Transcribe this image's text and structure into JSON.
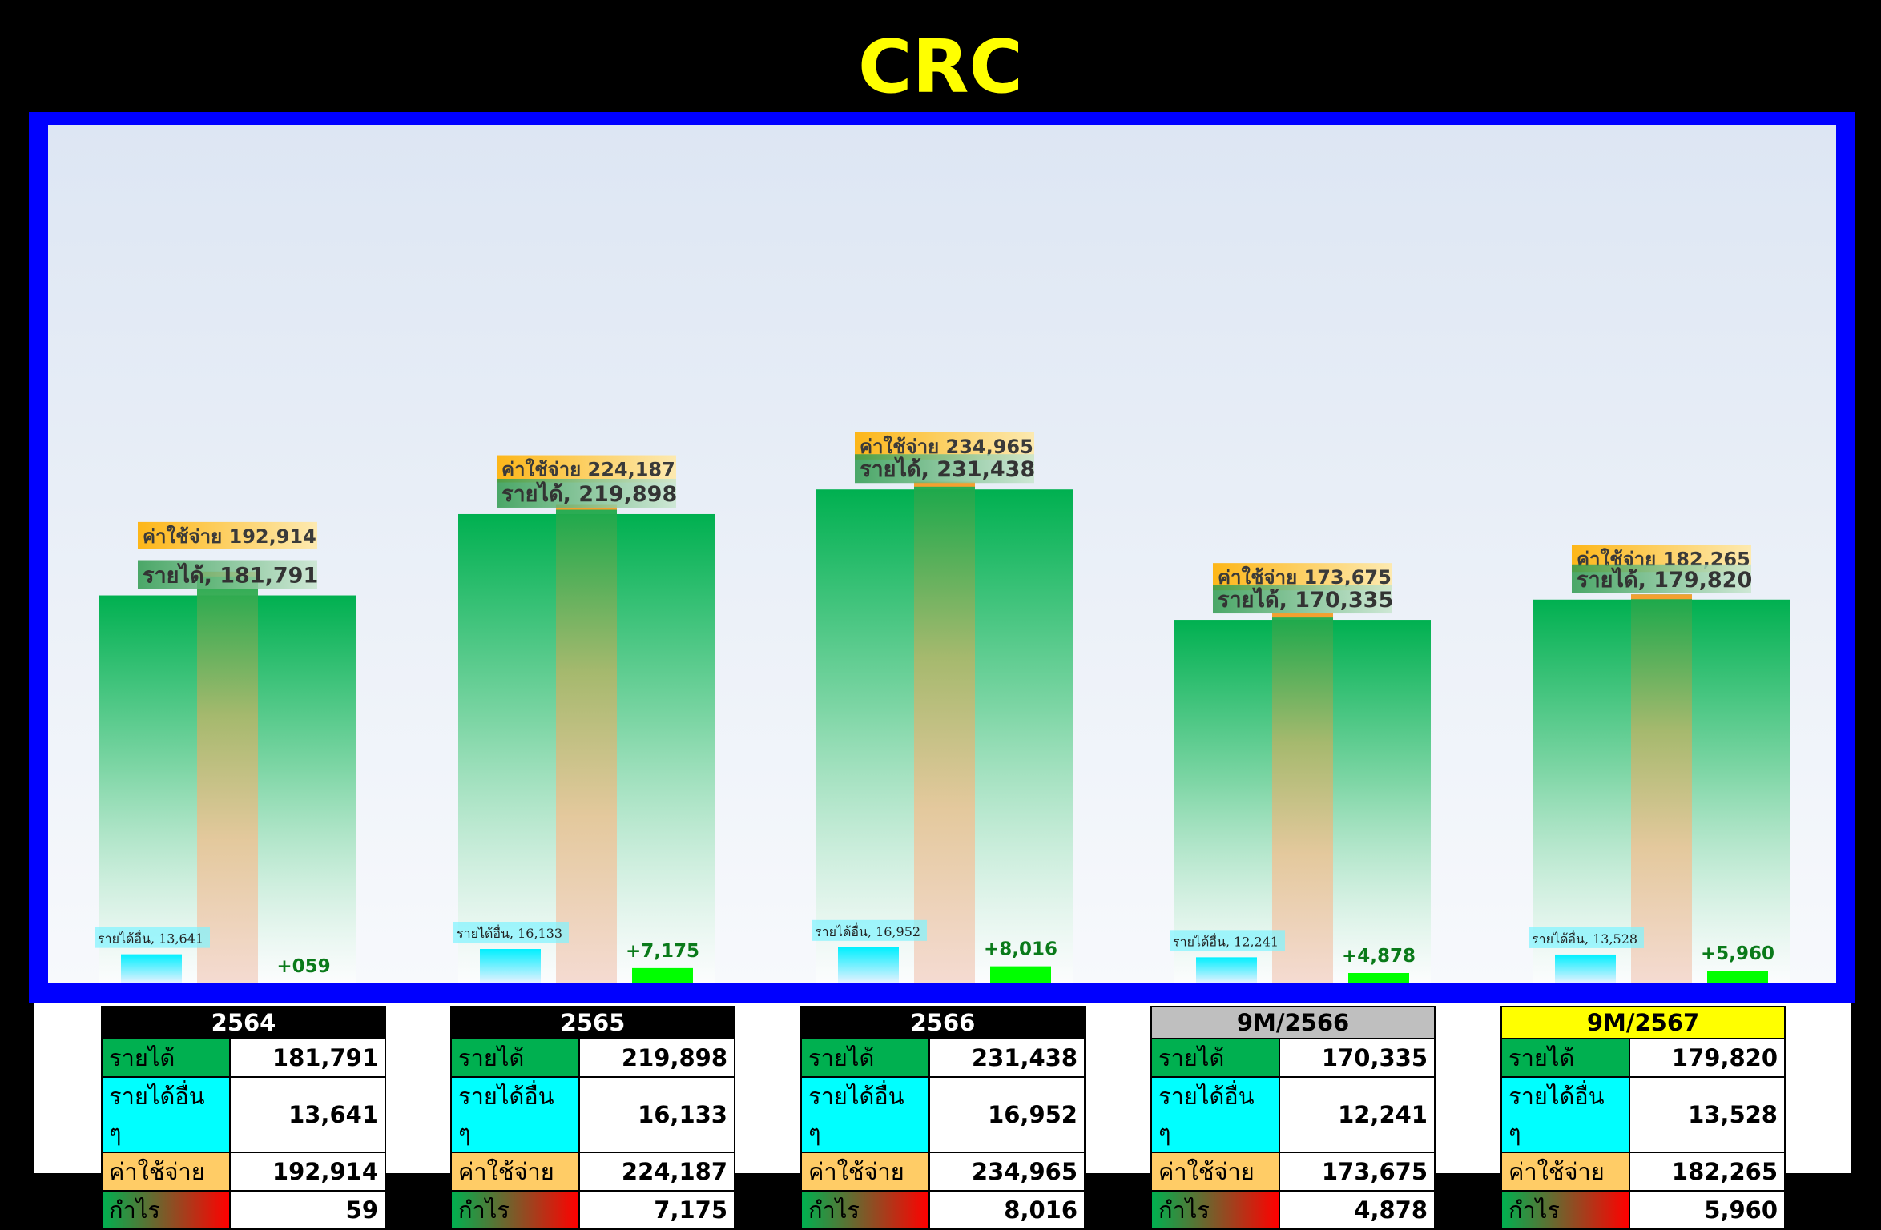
{
  "title": "CRC",
  "colors": {
    "revenue": "#00b050",
    "other_income": "#00ffff",
    "expense": "#ffcc66",
    "profit": "#00ff00",
    "frame": "#0000ff",
    "title": "#ffff00"
  },
  "chart_data": {
    "type": "bar",
    "categories": [
      "2564",
      "2565",
      "2566",
      "9M/2566",
      "9M/2567"
    ],
    "series": [
      {
        "name": "รายได้",
        "values": [
          181791,
          219898,
          231438,
          170335,
          179820
        ]
      },
      {
        "name": "รายได้อื่น",
        "values": [
          13641,
          16133,
          16952,
          12241,
          13528
        ]
      },
      {
        "name": "ค่าใช้จ่าย",
        "values": [
          192914,
          224187,
          234965,
          173675,
          182265
        ]
      },
      {
        "name": "กำไร",
        "values": [
          59,
          7175,
          8016,
          4878,
          5960
        ]
      }
    ],
    "data_labels": {
      "revenue": [
        "รายได้, 181,791",
        "รายได้, 219,898",
        "รายได้, 231,438",
        "รายได้, 170,335",
        "รายได้, 179,820"
      ],
      "other_income": [
        "รายได้อื่น, 13,641",
        "รายได้อื่น, 16,133",
        "รายได้อื่น, 16,952",
        "รายได้อื่น, 12,241",
        "รายได้อื่น, 13,528"
      ],
      "expense": [
        "ค่าใช้จ่าย  192,914",
        "ค่าใช้จ่าย  224,187",
        "ค่าใช้จ่าย  234,965",
        "ค่าใช้จ่าย  173,675",
        "ค่าใช้จ่าย  182,265"
      ],
      "profit": [
        "+059",
        "+7,175",
        "+8,016",
        "+4,878",
        "+5,960"
      ]
    },
    "ylim": [
      0,
      250000
    ],
    "grid": false,
    "legend": "none"
  },
  "tables": [
    {
      "header": "2564",
      "header_style": "black",
      "rows": [
        {
          "label": "รายได้",
          "value": "181,791",
          "style": "rev"
        },
        {
          "label": "รายได้อื่น ๆ",
          "value": "13,641",
          "style": "oth"
        },
        {
          "label": "ค่าใช้จ่าย",
          "value": "192,914",
          "style": "exp"
        },
        {
          "label": "กำไร",
          "value": "59",
          "style": "prof"
        }
      ]
    },
    {
      "header": "2565",
      "header_style": "black",
      "rows": [
        {
          "label": "รายได้",
          "value": "219,898",
          "style": "rev"
        },
        {
          "label": "รายได้อื่น ๆ",
          "value": "16,133",
          "style": "oth"
        },
        {
          "label": "ค่าใช้จ่าย",
          "value": "224,187",
          "style": "exp"
        },
        {
          "label": "กำไร",
          "value": "7,175",
          "style": "prof"
        }
      ]
    },
    {
      "header": "2566",
      "header_style": "black",
      "rows": [
        {
          "label": "รายได้",
          "value": "231,438",
          "style": "rev"
        },
        {
          "label": "รายได้อื่น ๆ",
          "value": "16,952",
          "style": "oth"
        },
        {
          "label": "ค่าใช้จ่าย",
          "value": "234,965",
          "style": "exp"
        },
        {
          "label": "กำไร",
          "value": "8,016",
          "style": "prof"
        }
      ]
    },
    {
      "header": "9M/2566",
      "header_style": "gray",
      "rows": [
        {
          "label": "รายได้",
          "value": "170,335",
          "style": "rev"
        },
        {
          "label": "รายได้อื่น ๆ",
          "value": "12,241",
          "style": "oth"
        },
        {
          "label": "ค่าใช้จ่าย",
          "value": "173,675",
          "style": "exp"
        },
        {
          "label": "กำไร",
          "value": "4,878",
          "style": "prof"
        }
      ]
    },
    {
      "header": "9M/2567",
      "header_style": "yellow",
      "rows": [
        {
          "label": "รายได้",
          "value": "179,820",
          "style": "rev"
        },
        {
          "label": "รายได้อื่น ๆ",
          "value": "13,528",
          "style": "oth"
        },
        {
          "label": "ค่าใช้จ่าย",
          "value": "182,265",
          "style": "exp"
        },
        {
          "label": "กำไร",
          "value": "5,960",
          "style": "prof"
        }
      ]
    }
  ]
}
